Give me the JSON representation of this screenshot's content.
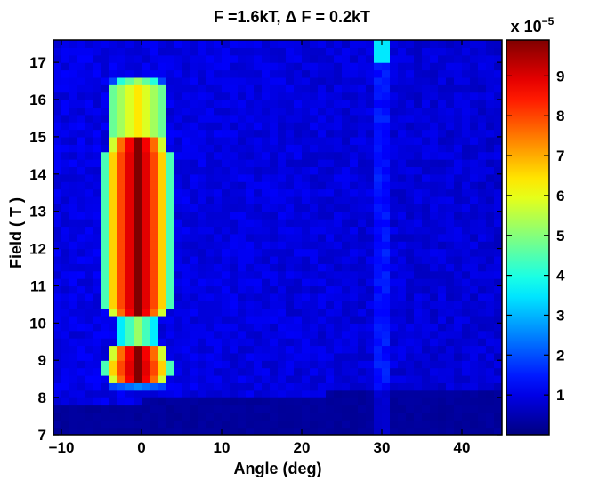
{
  "chart_data": {
    "type": "heatmap",
    "title": "F =1.6kT, Δ F = 0.2kT",
    "xlabel": "Angle (deg)",
    "ylabel": "Field ( T )",
    "xlim": [
      -11,
      45
    ],
    "ylim": [
      7,
      17.6
    ],
    "x_ticks": [
      -10,
      0,
      10,
      20,
      30,
      40
    ],
    "x_tick_labels": [
      "−10",
      "0",
      "10",
      "20",
      "30",
      "40"
    ],
    "y_ticks": [
      7,
      8,
      9,
      10,
      11,
      12,
      13,
      14,
      15,
      16,
      17
    ],
    "y_tick_labels": [
      "7",
      "8",
      "9",
      "10",
      "11",
      "12",
      "13",
      "14",
      "15",
      "16",
      "17"
    ],
    "colorbar": {
      "colormap": "jet",
      "range": [
        0,
        9.9
      ],
      "ticks": [
        1,
        2,
        3,
        4,
        5,
        6,
        7,
        8,
        9
      ],
      "tick_labels": [
        "1",
        "2",
        "3",
        "4",
        "5",
        "6",
        "7",
        "8",
        "9"
      ],
      "exponent_label": "x 10",
      "exponent": "−5"
    },
    "grid": false,
    "features": [
      {
        "kind": "peak-band",
        "angle_center": -0.5,
        "field_range": [
          10.1,
          15.0
        ],
        "value": 9.9
      },
      {
        "kind": "peak-band",
        "angle_center": -0.5,
        "field_range": [
          8.3,
          9.3
        ],
        "value": 9.9
      },
      {
        "kind": "halo",
        "angle_center": -0.5,
        "field_range": [
          8.2,
          16.6
        ],
        "value": 4.0
      },
      {
        "kind": "hot-spot",
        "angle_center": 30,
        "field_range": [
          17.0,
          17.6
        ],
        "value": 3.5
      },
      {
        "kind": "background",
        "field_range": [
          7.0,
          8.0
        ],
        "value": 0.2
      },
      {
        "kind": "background",
        "field_range": [
          8.0,
          17.6
        ],
        "value": 1.0
      }
    ]
  }
}
